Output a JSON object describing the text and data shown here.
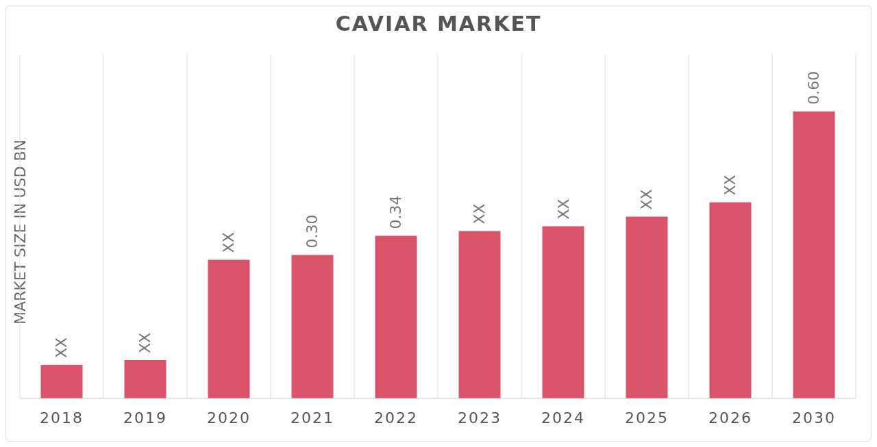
{
  "chart_data": {
    "type": "bar",
    "title": "CAVIAR MARKET",
    "ylabel": "MARKET SIZE IN USD BN",
    "categories": [
      "2018",
      "2019",
      "2020",
      "2021",
      "2022",
      "2023",
      "2024",
      "2025",
      "2026",
      "2030"
    ],
    "values": [
      0.07,
      0.08,
      0.29,
      0.3,
      0.34,
      0.35,
      0.36,
      0.38,
      0.41,
      0.6
    ],
    "value_labels": [
      "XX",
      "XX",
      "XX",
      "0.30",
      "0.34",
      "XX",
      "XX",
      "XX",
      "XX",
      "0.60"
    ],
    "color": "#d9536a",
    "grid": "x"
  }
}
